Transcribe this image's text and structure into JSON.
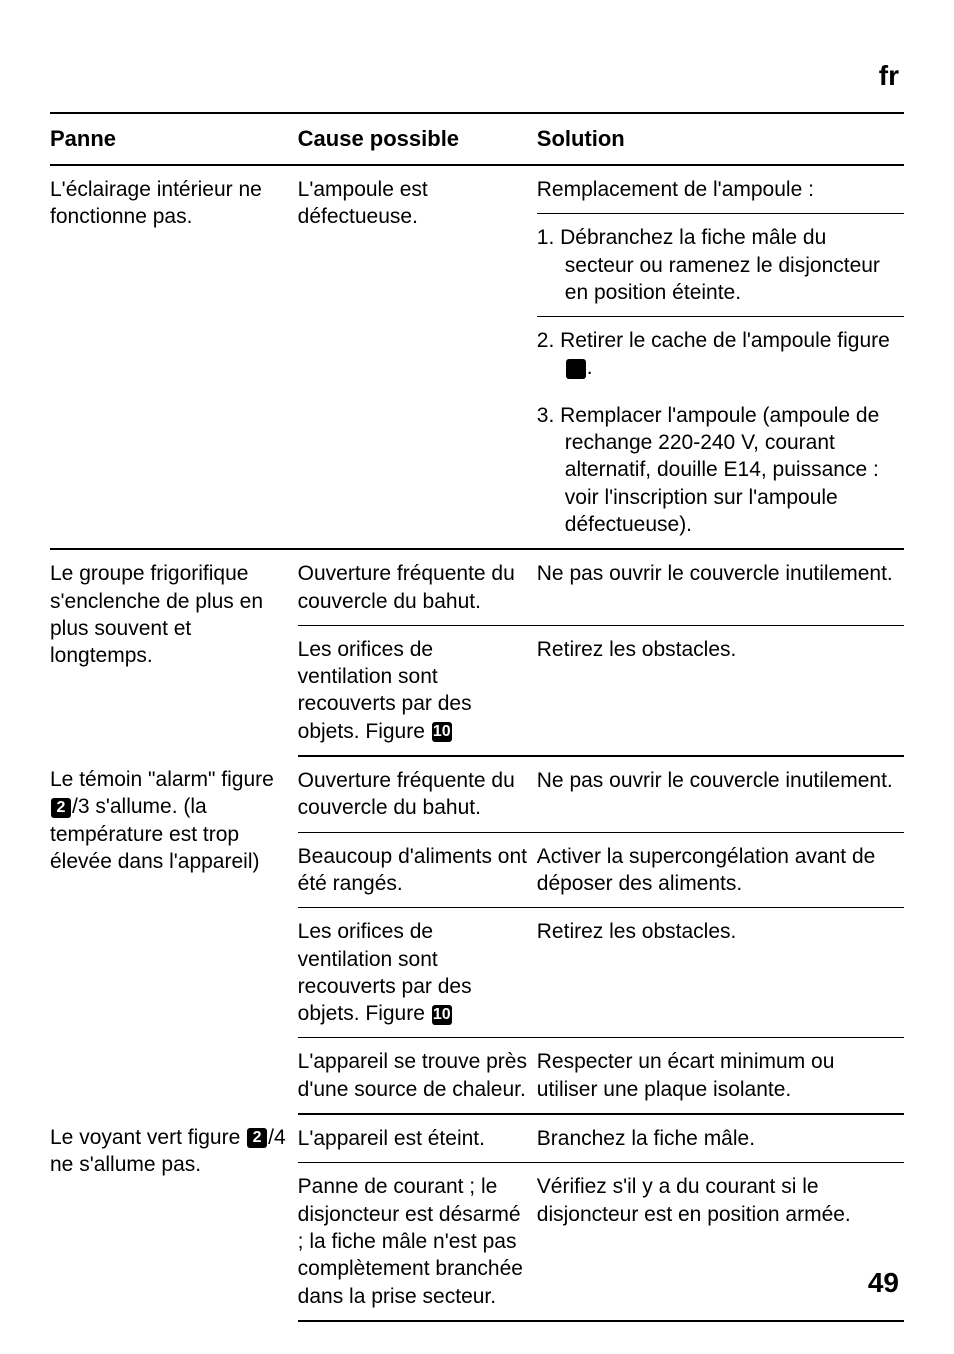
{
  "header": {
    "lang": "fr"
  },
  "columns": {
    "panne": "Panne",
    "cause": "Cause possible",
    "solution": "Solution"
  },
  "rows": [
    {
      "panne": "L'éclairage intérieur ne fonctionne pas.",
      "cause": "L'ampoule est défectueuse.",
      "sol_intro": "Remplacement de l'ampoule :",
      "step1": "1. Débranchez la fiche mâle du secteur ou ramenez le disjoncteur en position éteinte.",
      "step2_pre": "2. Retirer le cache de l'ampoule figure ",
      "step2_icon": "8",
      "step2_post": ".",
      "step3": "3. Remplacer l'ampoule (ampoule de rechange 220-240 V, courant alternatif, douille E14, puissance : voir l'inscription sur l'ampoule défectueuse)."
    },
    {
      "panne": "Le groupe frigorifique s'enclenche de plus en plus souvent et longtemps.",
      "cause1": "Ouverture fréquente du couvercle du bahut.",
      "sol1": "Ne pas ouvrir le couvercle inutilement.",
      "cause2_pre": "Les orifices de ventilation sont recouverts par des objets. Figure ",
      "cause2_icon": "10",
      "sol2": "Retirez les obstacles."
    },
    {
      "panne_pre": "Le témoin \"alarm\" figure ",
      "panne_icon": "2",
      "panne_post": "/3 s'allume. (la température est trop élevée dans l'appareil)",
      "cause1": "Ouverture fréquente du couvercle du bahut.",
      "sol1": "Ne pas ouvrir le couvercle inutilement.",
      "cause2": "Beaucoup d'aliments ont été rangés.",
      "sol2": "Activer la supercongélation avant de déposer des aliments.",
      "cause3_pre": "Les orifices de ventilation sont recouverts par des objets. Figure ",
      "cause3_icon": "10",
      "sol3": "Retirez les obstacles.",
      "cause4": "L'appareil se trouve près d'une source de chaleur.",
      "sol4": "Respecter un écart minimum ou utiliser une plaque isolante."
    },
    {
      "panne_pre": "Le voyant vert figure ",
      "panne_icon": "2",
      "panne_post": "/4 ne s'allume pas.",
      "cause1": "L'appareil est éteint.",
      "sol1": "Branchez la fiche mâle.",
      "cause2": "Panne de courant ; le disjoncteur est désarmé ; la fiche mâle n'est pas complètement branchée dans la prise secteur.",
      "sol2": "Vérifiez s'il y a du courant si le disjoncteur est en position armée."
    }
  ],
  "page_number": "49"
}
